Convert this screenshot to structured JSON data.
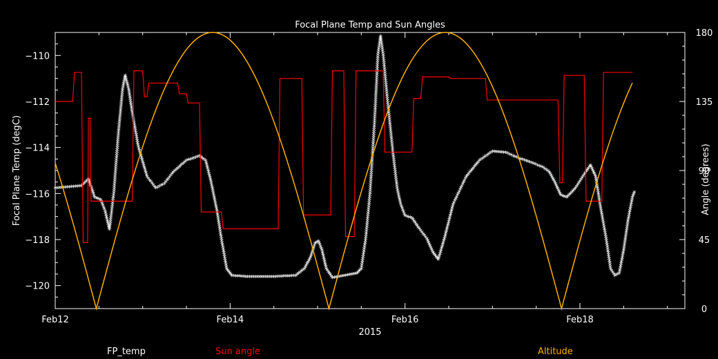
{
  "chart_data": {
    "type": "line",
    "title": "Focal Plane Temp and Sun Angles",
    "xlabel": "2015",
    "ylabel_left": "Focal Plane Temp (degC)",
    "ylabel_right": "Angle (degrees)",
    "x_unit": "days from Feb12 2015",
    "xlim": [
      0,
      7.2
    ],
    "ylim_left": [
      -121,
      -109
    ],
    "ylim_right": [
      0,
      180
    ],
    "x_ticks": [
      {
        "x": 0,
        "label": "Feb12"
      },
      {
        "x": 2,
        "label": "Feb14"
      },
      {
        "x": 4,
        "label": "Feb16"
      },
      {
        "x": 6,
        "label": "Feb18"
      }
    ],
    "y_ticks_left": [
      -110,
      -112,
      -114,
      -116,
      -118,
      -120
    ],
    "y_ticks_right": [
      0,
      45,
      90,
      135,
      180
    ],
    "colors": {
      "fp_temp": "#ffffff",
      "sun_angle": "#ff0000",
      "altitude": "#ffb000"
    },
    "series": [
      {
        "name": "FP_temp",
        "axis": "left",
        "color": "#ffffff",
        "style": "markers",
        "points": [
          [
            0,
            -115.8
          ],
          [
            0.3,
            -115.7
          ],
          [
            0.38,
            -115.4
          ],
          [
            0.45,
            -116.2
          ],
          [
            0.52,
            -116.3
          ],
          [
            0.57,
            -116.8
          ],
          [
            0.62,
            -117.6
          ],
          [
            0.67,
            -116.0
          ],
          [
            0.72,
            -113.5
          ],
          [
            0.77,
            -111.5
          ],
          [
            0.8,
            -110.9
          ],
          [
            0.84,
            -111.5
          ],
          [
            0.88,
            -112.5
          ],
          [
            0.95,
            -114.0
          ],
          [
            1.05,
            -115.3
          ],
          [
            1.15,
            -115.8
          ],
          [
            1.25,
            -115.6
          ],
          [
            1.35,
            -115.1
          ],
          [
            1.5,
            -114.6
          ],
          [
            1.65,
            -114.4
          ],
          [
            1.72,
            -114.6
          ],
          [
            1.78,
            -115.5
          ],
          [
            1.85,
            -116.8
          ],
          [
            1.9,
            -118.0
          ],
          [
            1.96,
            -119.3
          ],
          [
            2.02,
            -119.6
          ],
          [
            2.2,
            -119.65
          ],
          [
            2.5,
            -119.65
          ],
          [
            2.75,
            -119.6
          ],
          [
            2.85,
            -119.3
          ],
          [
            2.92,
            -118.8
          ],
          [
            2.97,
            -118.2
          ],
          [
            3.01,
            -118.1
          ],
          [
            3.05,
            -118.5
          ],
          [
            3.1,
            -119.3
          ],
          [
            3.17,
            -119.7
          ],
          [
            3.3,
            -119.6
          ],
          [
            3.45,
            -119.5
          ],
          [
            3.5,
            -119.3
          ],
          [
            3.55,
            -118.0
          ],
          [
            3.6,
            -116.0
          ],
          [
            3.65,
            -113.0
          ],
          [
            3.69,
            -110.0
          ],
          [
            3.72,
            -109.2
          ],
          [
            3.75,
            -110.0
          ],
          [
            3.8,
            -112.0
          ],
          [
            3.86,
            -114.2
          ],
          [
            3.91,
            -115.8
          ],
          [
            3.95,
            -116.5
          ],
          [
            4.0,
            -117.0
          ],
          [
            4.08,
            -117.1
          ],
          [
            4.15,
            -117.5
          ],
          [
            4.25,
            -118.0
          ],
          [
            4.32,
            -118.6
          ],
          [
            4.38,
            -118.9
          ],
          [
            4.45,
            -118.0
          ],
          [
            4.55,
            -116.5
          ],
          [
            4.7,
            -115.3
          ],
          [
            4.85,
            -114.6
          ],
          [
            5.0,
            -114.2
          ],
          [
            5.15,
            -114.25
          ],
          [
            5.3,
            -114.5
          ],
          [
            5.45,
            -114.7
          ],
          [
            5.58,
            -114.9
          ],
          [
            5.65,
            -115.1
          ],
          [
            5.72,
            -115.6
          ],
          [
            5.78,
            -116.1
          ],
          [
            5.85,
            -116.2
          ],
          [
            5.95,
            -115.8
          ],
          [
            6.05,
            -115.2
          ],
          [
            6.12,
            -114.8
          ],
          [
            6.18,
            -115.3
          ],
          [
            6.23,
            -116.5
          ],
          [
            6.3,
            -118.0
          ],
          [
            6.35,
            -119.3
          ],
          [
            6.4,
            -119.6
          ],
          [
            6.45,
            -119.5
          ],
          [
            6.5,
            -118.5
          ],
          [
            6.55,
            -117.2
          ],
          [
            6.6,
            -116.2
          ],
          [
            6.63,
            -115.9
          ]
        ]
      },
      {
        "name": "Sun angle",
        "axis": "right",
        "color": "#ff0000",
        "style": "step",
        "points": [
          [
            0,
            135
          ],
          [
            0.2,
            135
          ],
          [
            0.22,
            154
          ],
          [
            0.3,
            154
          ],
          [
            0.32,
            43
          ],
          [
            0.37,
            43
          ],
          [
            0.38,
            124
          ],
          [
            0.4,
            124
          ],
          [
            0.41,
            70
          ],
          [
            0.47,
            70
          ],
          [
            0.52,
            70
          ],
          [
            0.58,
            70
          ],
          [
            0.6,
            70
          ],
          [
            0.7,
            70
          ],
          [
            0.72,
            70
          ],
          [
            0.75,
            70
          ],
          [
            0.85,
            70
          ],
          [
            0.88,
            70
          ],
          [
            0.9,
            155
          ],
          [
            1.0,
            155
          ],
          [
            1.02,
            138
          ],
          [
            1.05,
            138
          ],
          [
            1.07,
            147
          ],
          [
            1.4,
            147
          ],
          [
            1.42,
            140
          ],
          [
            1.5,
            140
          ],
          [
            1.52,
            134
          ],
          [
            1.65,
            134
          ],
          [
            1.67,
            63
          ],
          [
            1.9,
            63
          ],
          [
            1.92,
            52
          ],
          [
            2.55,
            52
          ],
          [
            2.57,
            150
          ],
          [
            2.82,
            150
          ],
          [
            2.84,
            61
          ],
          [
            3.15,
            61
          ],
          [
            3.17,
            155
          ],
          [
            3.3,
            155
          ],
          [
            3.32,
            47
          ],
          [
            3.42,
            47
          ],
          [
            3.44,
            155
          ],
          [
            3.75,
            155
          ],
          [
            3.77,
            102
          ],
          [
            4.08,
            102
          ],
          [
            4.1,
            137
          ],
          [
            4.18,
            137
          ],
          [
            4.2,
            151
          ],
          [
            4.5,
            151
          ],
          [
            4.52,
            150
          ],
          [
            4.92,
            150
          ],
          [
            4.94,
            136
          ],
          [
            5.75,
            136
          ],
          [
            5.77,
            82
          ],
          [
            5.8,
            82
          ],
          [
            5.82,
            152
          ],
          [
            6.05,
            152
          ],
          [
            6.07,
            70
          ],
          [
            6.25,
            70
          ],
          [
            6.27,
            154
          ],
          [
            6.6,
            154
          ]
        ]
      },
      {
        "name": "Altitude",
        "axis": "right",
        "color": "#ffb000",
        "style": "line",
        "formula": "180*|cos(pi*(x-1.8)/2.66)|",
        "xrange": [
          0,
          6.6
        ]
      }
    ]
  },
  "legend": {
    "fp_temp": "FP_temp",
    "sun_angle": "Sun angle",
    "altitude": "Altitude"
  }
}
